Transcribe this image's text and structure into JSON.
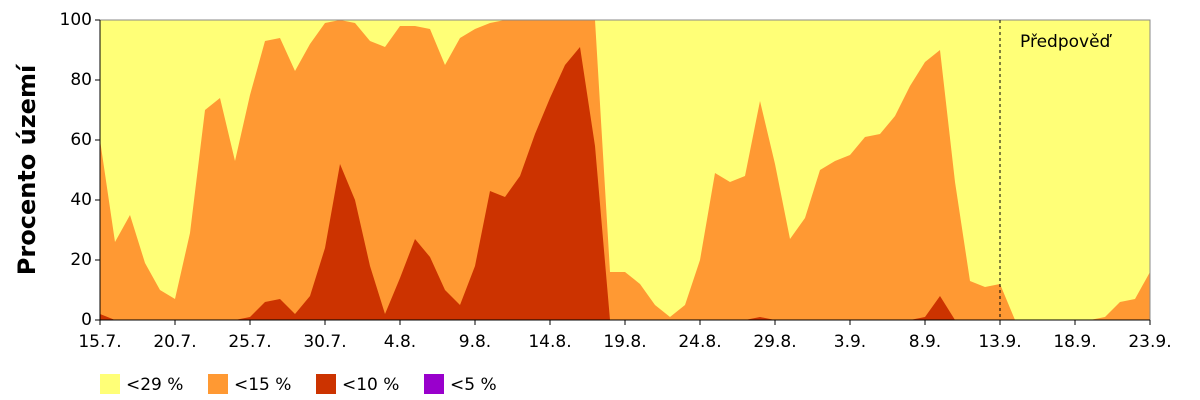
{
  "chart_data": {
    "type": "area",
    "y_label": "Procento území",
    "categories": [
      "15.7.",
      null,
      null,
      null,
      null,
      "20.7.",
      null,
      null,
      null,
      null,
      "25.7.",
      null,
      null,
      null,
      null,
      "30.7.",
      null,
      null,
      null,
      null,
      "4.8.",
      null,
      null,
      null,
      null,
      "9.8.",
      null,
      null,
      null,
      null,
      "14.8.",
      null,
      null,
      null,
      null,
      "19.8.",
      null,
      null,
      null,
      null,
      "24.8.",
      null,
      null,
      null,
      null,
      "29.8.",
      null,
      null,
      null,
      null,
      "3.9.",
      null,
      null,
      null,
      null,
      "8.9.",
      null,
      null,
      null,
      null,
      "13.9.",
      null,
      null,
      null,
      null,
      "18.9.",
      null,
      null,
      null,
      null,
      "23.9."
    ],
    "series": [
      {
        "name": "<29 %",
        "color": "#ffff77",
        "values": [
          100,
          100,
          100,
          100,
          100,
          100,
          100,
          100,
          100,
          100,
          100,
          100,
          100,
          100,
          100,
          100,
          100,
          100,
          100,
          100,
          100,
          100,
          100,
          100,
          100,
          100,
          100,
          100,
          100,
          100,
          100,
          100,
          100,
          100,
          100,
          100,
          100,
          100,
          100,
          100,
          100,
          100,
          100,
          100,
          100,
          100,
          100,
          100,
          100,
          100,
          100,
          100,
          100,
          100,
          100,
          100,
          100,
          100,
          100,
          100,
          100,
          100,
          100,
          100,
          100,
          100,
          100,
          100,
          100,
          100,
          100
        ]
      },
      {
        "name": "<15 %",
        "color": "#ff9933",
        "values": [
          60,
          26,
          35,
          19,
          10,
          7,
          29,
          70,
          74,
          53,
          75,
          93,
          94,
          83,
          92,
          99,
          100,
          99,
          93,
          91,
          98,
          98,
          97,
          85,
          94,
          97,
          99,
          100,
          100,
          100,
          100,
          100,
          100,
          100,
          16,
          16,
          12,
          5,
          1,
          5,
          20,
          49,
          46,
          48,
          73,
          52,
          27,
          34,
          50,
          53,
          55,
          61,
          62,
          68,
          78,
          86,
          90,
          46,
          13,
          11,
          12,
          0,
          0,
          0,
          0,
          0,
          0,
          1,
          6,
          7,
          16
        ]
      },
      {
        "name": "<10 %",
        "color": "#cc3300",
        "values": [
          2,
          0,
          0,
          0,
          0,
          0,
          0,
          0,
          0,
          0,
          1,
          6,
          7,
          2,
          8,
          24,
          52,
          40,
          18,
          2,
          14,
          27,
          21,
          10,
          5,
          18,
          43,
          41,
          48,
          62,
          74,
          85,
          91,
          58,
          0,
          0,
          0,
          0,
          0,
          0,
          0,
          0,
          0,
          0,
          1,
          0,
          0,
          0,
          0,
          0,
          0,
          0,
          0,
          0,
          0,
          1,
          8,
          0,
          0,
          0,
          0,
          0,
          0,
          0,
          0,
          0,
          0,
          0,
          0,
          0,
          0
        ]
      },
      {
        "name": "<5 %",
        "color": "#9900cc",
        "values": [
          0,
          0,
          0,
          0,
          0,
          0,
          0,
          0,
          0,
          0,
          0,
          0,
          0,
          0,
          0,
          0,
          0,
          0,
          0,
          0,
          0,
          0,
          0,
          0,
          0,
          0,
          0,
          0,
          0,
          0,
          0,
          0,
          0,
          0,
          0,
          0,
          0,
          0,
          0,
          0,
          0,
          0,
          0,
          0,
          0,
          0,
          0,
          0,
          0,
          0,
          0,
          0,
          0,
          0,
          0,
          0,
          0,
          0,
          0,
          0,
          0,
          0,
          0,
          0,
          0,
          0,
          0,
          0,
          0,
          0,
          0
        ]
      }
    ],
    "annotations": [
      {
        "text": "Předpověď",
        "x": "13.9."
      }
    ],
    "ylim": [
      0,
      100
    ],
    "yticks": [
      0,
      20,
      40,
      60,
      80,
      100
    ]
  }
}
